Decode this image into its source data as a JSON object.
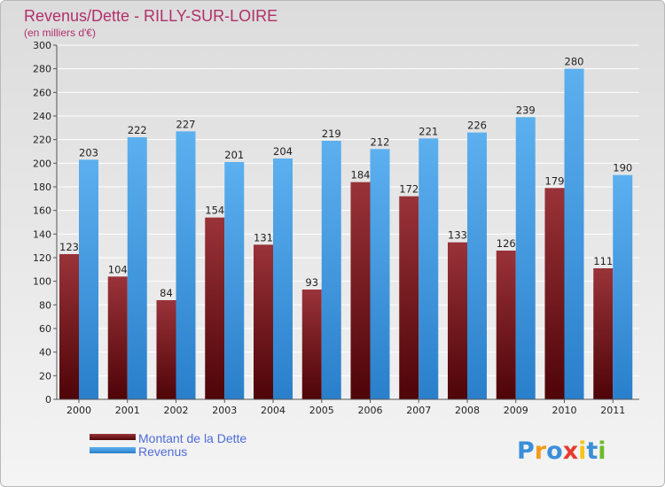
{
  "chart_data": {
    "type": "bar",
    "title": "Revenus/Dette - RILLY-SUR-LOIRE",
    "subtitle": "(en milliers d'€)",
    "xlabel": "",
    "ylabel": "",
    "ylim": [
      0,
      300
    ],
    "yticks": [
      0,
      20,
      40,
      60,
      80,
      100,
      120,
      140,
      160,
      180,
      200,
      220,
      240,
      260,
      280,
      300
    ],
    "grid": true,
    "legend_position": "bottom-left",
    "categories": [
      "2000",
      "2001",
      "2002",
      "2003",
      "2004",
      "2005",
      "2006",
      "2007",
      "2008",
      "2009",
      "2010",
      "2011"
    ],
    "series": [
      {
        "name": "Montant de la Dette",
        "color": "#7a1d22",
        "values": [
          123,
          104,
          84,
          154,
          131,
          93,
          184,
          172,
          133,
          126,
          179,
          111
        ]
      },
      {
        "name": "Revenus",
        "color": "#4aa3e8",
        "values": [
          203,
          222,
          227,
          201,
          204,
          219,
          212,
          221,
          226,
          239,
          280,
          190
        ]
      }
    ]
  },
  "brand": {
    "letters": [
      "P",
      "r",
      "o",
      "x",
      "i",
      "t",
      "i"
    ],
    "colors": [
      "#3a8fd8",
      "#f39b1c",
      "#3a8fd8",
      "#e53a2f",
      "#f5c51a",
      "#3a8fd8",
      "#6cba2c"
    ]
  }
}
